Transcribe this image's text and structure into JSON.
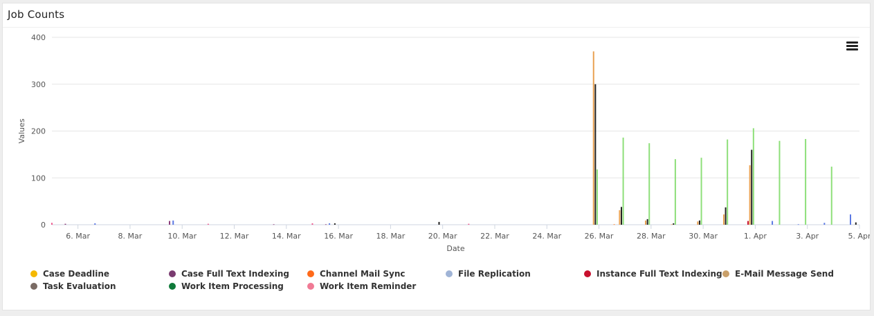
{
  "card": {
    "title": "Job Counts"
  },
  "chart_data": {
    "type": "bar",
    "title": "",
    "xlabel": "Date",
    "ylabel": "Values",
    "ylim": [
      0,
      400
    ],
    "yticks": [
      0,
      100,
      200,
      300,
      400
    ],
    "xlim": [
      "2024-03-05",
      "2024-04-05"
    ],
    "xticks": [
      "6. Mar",
      "8. Mar",
      "10. Mar",
      "12. Mar",
      "14. Mar",
      "16. Mar",
      "18. Mar",
      "20. Mar",
      "22. Mar",
      "24. Mar",
      "26. Mar",
      "28. Mar",
      "30. Mar",
      "1. Apr",
      "3. Apr",
      "5. Apr"
    ],
    "grid": true,
    "legend_position": "bottom",
    "series": [
      {
        "name": "Case Deadline",
        "color": "#f5b800",
        "points": []
      },
      {
        "name": "Case Full Text Indexing",
        "color": "#8a3b7a",
        "points": [
          {
            "x": "2024-03-06",
            "y": 2
          },
          {
            "x": "2024-03-10",
            "y": 8
          },
          {
            "x": "2024-03-14",
            "y": 1
          },
          {
            "x": "2024-03-16",
            "y": 1
          }
        ]
      },
      {
        "name": "Channel Mail Sync",
        "color": "#ff7a1a",
        "points": [
          {
            "x": "2024-03-27",
            "y": 1
          }
        ]
      },
      {
        "name": "File Replication",
        "color": "#5b78e3",
        "points": [
          {
            "x": "2024-03-07",
            "y": 3
          },
          {
            "x": "2024-03-10",
            "y": 9
          },
          {
            "x": "2024-03-16",
            "y": 3
          },
          {
            "x": "2024-04-02",
            "y": 8
          },
          {
            "x": "2024-04-03",
            "y": 1
          },
          {
            "x": "2024-04-04",
            "y": 4
          },
          {
            "x": "2024-04-05",
            "y": 22
          }
        ]
      },
      {
        "name": "Instance Full Text Indexing",
        "color": "#c8102e",
        "points": [
          {
            "x": "2024-04-01",
            "y": 8
          }
        ]
      },
      {
        "name": "E-Mail Message Send",
        "color": "#e8a050",
        "points": [
          {
            "x": "2024-03-26",
            "y": 370
          },
          {
            "x": "2024-03-27",
            "y": 31
          },
          {
            "x": "2024-03-28",
            "y": 9
          },
          {
            "x": "2024-03-29",
            "y": 1
          },
          {
            "x": "2024-03-30",
            "y": 7
          },
          {
            "x": "2024-03-31",
            "y": 22
          },
          {
            "x": "2024-04-01",
            "y": 127
          }
        ]
      },
      {
        "name": "Task Evaluation",
        "color": "#222222",
        "points": [
          {
            "x": "2024-03-16",
            "y": 3
          },
          {
            "x": "2024-03-20",
            "y": 6
          },
          {
            "x": "2024-03-26",
            "y": 300
          },
          {
            "x": "2024-03-27",
            "y": 38
          },
          {
            "x": "2024-03-28",
            "y": 12
          },
          {
            "x": "2024-03-29",
            "y": 3
          },
          {
            "x": "2024-03-30",
            "y": 9
          },
          {
            "x": "2024-03-31",
            "y": 37
          },
          {
            "x": "2024-04-01",
            "y": 160
          },
          {
            "x": "2024-04-05",
            "y": 5
          }
        ]
      },
      {
        "name": "Work Item Processing",
        "color": "#8ddf79",
        "points": [
          {
            "x": "2024-03-26",
            "y": 118
          },
          {
            "x": "2024-03-27",
            "y": 186
          },
          {
            "x": "2024-03-28",
            "y": 174
          },
          {
            "x": "2024-03-29",
            "y": 140
          },
          {
            "x": "2024-03-30",
            "y": 143
          },
          {
            "x": "2024-03-31",
            "y": 182
          },
          {
            "x": "2024-04-01",
            "y": 206
          },
          {
            "x": "2024-04-02",
            "y": 179
          },
          {
            "x": "2024-04-03",
            "y": 183
          },
          {
            "x": "2024-04-04",
            "y": 124
          }
        ]
      },
      {
        "name": "Work Item Reminder",
        "color": "#ee5a8f",
        "points": [
          {
            "x": "2024-03-05",
            "y": 4
          },
          {
            "x": "2024-03-11",
            "y": 2
          },
          {
            "x": "2024-03-15",
            "y": 3
          },
          {
            "x": "2024-03-21",
            "y": 2
          }
        ]
      }
    ]
  },
  "legend": {
    "items": [
      {
        "label": "Case Deadline",
        "color": "#f5b800"
      },
      {
        "label": "Case Full Text Indexing",
        "color": "#7a3b70"
      },
      {
        "label": "Channel Mail Sync",
        "color": "#ff6a1a"
      },
      {
        "label": "File Replication",
        "color": "#a0b4d6"
      },
      {
        "label": "Instance Full Text Indexing",
        "color": "#c8102e"
      },
      {
        "label": "E-Mail Message Send",
        "color": "#c9a06a"
      },
      {
        "label": "Task Evaluation",
        "color": "#7a6b64"
      },
      {
        "label": "Work Item Processing",
        "color": "#0f7a3a"
      },
      {
        "label": "Work Item Reminder",
        "color": "#f07a95"
      }
    ]
  },
  "menu": {
    "icon": "hamburger-menu-icon"
  }
}
